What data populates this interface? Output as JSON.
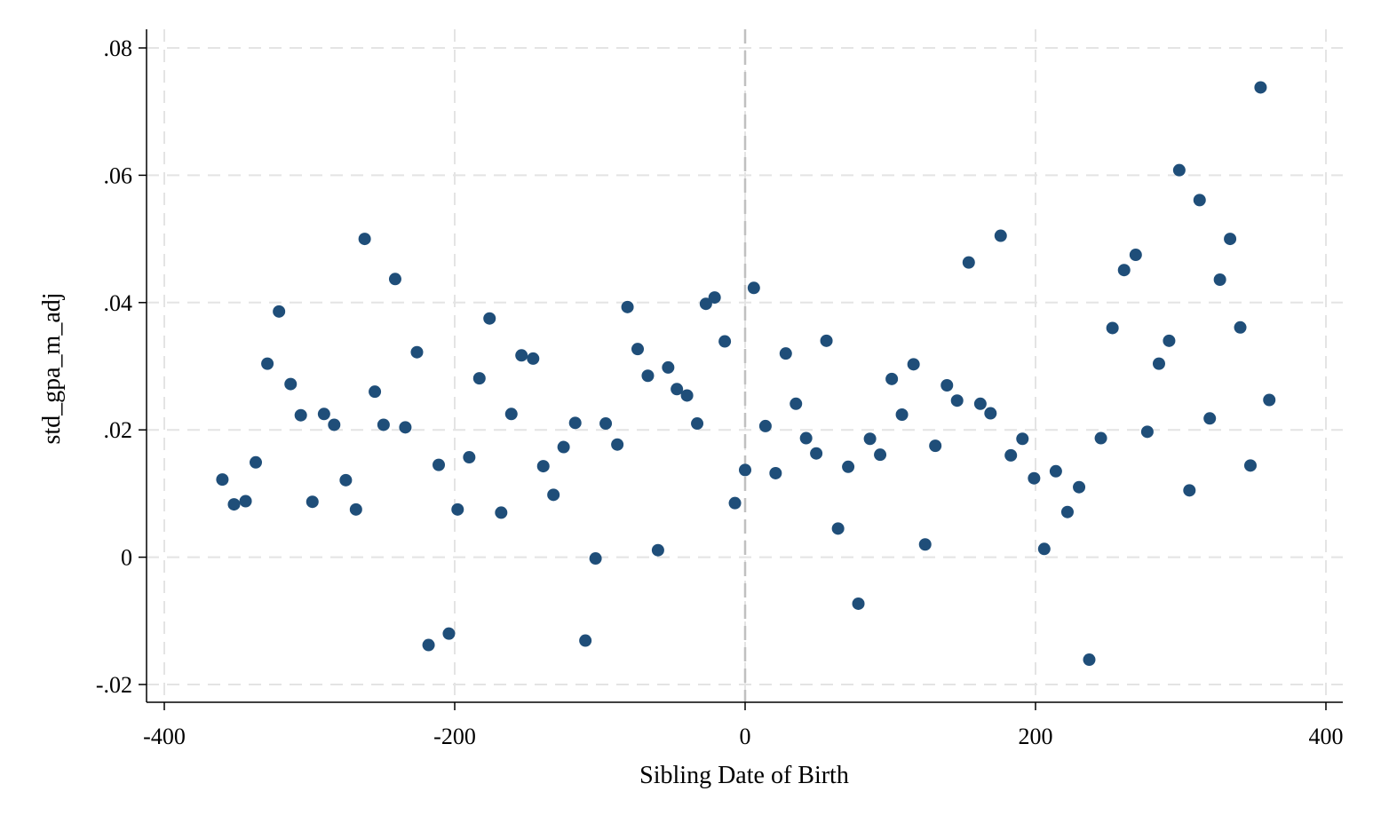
{
  "chart_data": {
    "type": "scatter",
    "title": "",
    "xlabel": "Sibling Date of Birth",
    "ylabel": "std_gpa_m_adj",
    "xlim": [
      -400,
      400
    ],
    "ylim": [
      -0.02,
      0.08
    ],
    "x_ticks": [
      -400,
      -200,
      0,
      200,
      400
    ],
    "x_tick_labels": [
      "-400",
      "-200",
      "0",
      "200",
      "400"
    ],
    "y_ticks": [
      -0.02,
      0,
      0.02,
      0.04,
      0.06,
      0.08
    ],
    "y_tick_labels": [
      "-.02",
      "0",
      ".02",
      ".04",
      ".06",
      ".08"
    ],
    "grid": true,
    "vertical_reference_line": 0,
    "marker_color": "#1f4e79",
    "grid_color": "#e4e4e4",
    "reference_line_color": "#c0c0c0",
    "points": [
      {
        "x": -360,
        "y": 0.0122
      },
      {
        "x": -352,
        "y": 0.0083
      },
      {
        "x": -344,
        "y": 0.0088
      },
      {
        "x": -337,
        "y": 0.0149
      },
      {
        "x": -329,
        "y": 0.0304
      },
      {
        "x": -321,
        "y": 0.0386
      },
      {
        "x": -313,
        "y": 0.0272
      },
      {
        "x": -306,
        "y": 0.0223
      },
      {
        "x": -298,
        "y": 0.0087
      },
      {
        "x": -290,
        "y": 0.0225
      },
      {
        "x": -283,
        "y": 0.0208
      },
      {
        "x": -275,
        "y": 0.0121
      },
      {
        "x": -268,
        "y": 0.0075
      },
      {
        "x": -262,
        "y": 0.05
      },
      {
        "x": -255,
        "y": 0.026
      },
      {
        "x": -249,
        "y": 0.0208
      },
      {
        "x": -241,
        "y": 0.0437
      },
      {
        "x": -234,
        "y": 0.0204
      },
      {
        "x": -226,
        "y": 0.0322
      },
      {
        "x": -218,
        "y": -0.0138
      },
      {
        "x": -211,
        "y": 0.0145
      },
      {
        "x": -204,
        "y": -0.012
      },
      {
        "x": -198,
        "y": 0.0075
      },
      {
        "x": -190,
        "y": 0.0157
      },
      {
        "x": -183,
        "y": 0.0281
      },
      {
        "x": -176,
        "y": 0.0375
      },
      {
        "x": -168,
        "y": 0.007
      },
      {
        "x": -161,
        "y": 0.0225
      },
      {
        "x": -154,
        "y": 0.0317
      },
      {
        "x": -146,
        "y": 0.0312
      },
      {
        "x": -139,
        "y": 0.0143
      },
      {
        "x": -132,
        "y": 0.0098
      },
      {
        "x": -125,
        "y": 0.0173
      },
      {
        "x": -117,
        "y": 0.0211
      },
      {
        "x": -110,
        "y": -0.0131
      },
      {
        "x": -103,
        "y": -0.0002
      },
      {
        "x": -96,
        "y": 0.021
      },
      {
        "x": -88,
        "y": 0.0177
      },
      {
        "x": -81,
        "y": 0.0393
      },
      {
        "x": -74,
        "y": 0.0327
      },
      {
        "x": -67,
        "y": 0.0285
      },
      {
        "x": -60,
        "y": 0.0011
      },
      {
        "x": -53,
        "y": 0.0298
      },
      {
        "x": -47,
        "y": 0.0264
      },
      {
        "x": -40,
        "y": 0.0254
      },
      {
        "x": -33,
        "y": 0.021
      },
      {
        "x": -27,
        "y": 0.0398
      },
      {
        "x": -21,
        "y": 0.0408
      },
      {
        "x": -14,
        "y": 0.0339
      },
      {
        "x": -7,
        "y": 0.0085
      },
      {
        "x": 0,
        "y": 0.0137
      },
      {
        "x": 6,
        "y": 0.0423
      },
      {
        "x": 14,
        "y": 0.0206
      },
      {
        "x": 21,
        "y": 0.0132
      },
      {
        "x": 28,
        "y": 0.032
      },
      {
        "x": 35,
        "y": 0.0241
      },
      {
        "x": 42,
        "y": 0.0187
      },
      {
        "x": 49,
        "y": 0.0163
      },
      {
        "x": 56,
        "y": 0.034
      },
      {
        "x": 64,
        "y": 0.0045
      },
      {
        "x": 71,
        "y": 0.0142
      },
      {
        "x": 78,
        "y": -0.0073
      },
      {
        "x": 86,
        "y": 0.0186
      },
      {
        "x": 93,
        "y": 0.0161
      },
      {
        "x": 101,
        "y": 0.028
      },
      {
        "x": 108,
        "y": 0.0224
      },
      {
        "x": 116,
        "y": 0.0303
      },
      {
        "x": 124,
        "y": 0.002
      },
      {
        "x": 131,
        "y": 0.0175
      },
      {
        "x": 139,
        "y": 0.027
      },
      {
        "x": 146,
        "y": 0.0246
      },
      {
        "x": 154,
        "y": 0.0463
      },
      {
        "x": 162,
        "y": 0.0241
      },
      {
        "x": 169,
        "y": 0.0226
      },
      {
        "x": 176,
        "y": 0.0505
      },
      {
        "x": 183,
        "y": 0.016
      },
      {
        "x": 191,
        "y": 0.0186
      },
      {
        "x": 199,
        "y": 0.0124
      },
      {
        "x": 206,
        "y": 0.0013
      },
      {
        "x": 214,
        "y": 0.0135
      },
      {
        "x": 222,
        "y": 0.0071
      },
      {
        "x": 230,
        "y": 0.011
      },
      {
        "x": 237,
        "y": -0.0161
      },
      {
        "x": 245,
        "y": 0.0187
      },
      {
        "x": 253,
        "y": 0.036
      },
      {
        "x": 261,
        "y": 0.0451
      },
      {
        "x": 269,
        "y": 0.0475
      },
      {
        "x": 277,
        "y": 0.0197
      },
      {
        "x": 285,
        "y": 0.0304
      },
      {
        "x": 292,
        "y": 0.034
      },
      {
        "x": 299,
        "y": 0.0608
      },
      {
        "x": 306,
        "y": 0.0105
      },
      {
        "x": 313,
        "y": 0.0561
      },
      {
        "x": 320,
        "y": 0.0218
      },
      {
        "x": 327,
        "y": 0.0436
      },
      {
        "x": 334,
        "y": 0.05
      },
      {
        "x": 341,
        "y": 0.0361
      },
      {
        "x": 348,
        "y": 0.0144
      },
      {
        "x": 355,
        "y": 0.0738
      },
      {
        "x": 361,
        "y": 0.0247
      }
    ]
  }
}
